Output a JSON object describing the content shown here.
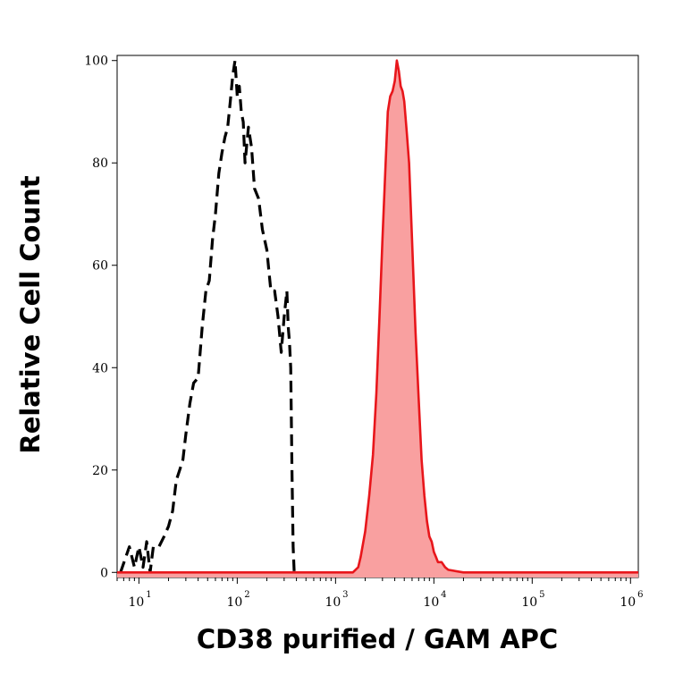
{
  "chart_data": {
    "type": "line",
    "title": "",
    "xlabel": "CD38 purified / GAM APC",
    "ylabel": "Relative Cell Count",
    "x_scale": "log",
    "xlim": [
      6,
      1200000
    ],
    "ylim": [
      -1,
      101
    ],
    "x_ticks": [
      {
        "base": "10",
        "exp": "1",
        "value": 10
      },
      {
        "base": "10",
        "exp": "2",
        "value": 100
      },
      {
        "base": "10",
        "exp": "3",
        "value": 1000
      },
      {
        "base": "10",
        "exp": "4",
        "value": 10000
      },
      {
        "base": "10",
        "exp": "5",
        "value": 100000
      },
      {
        "base": "10",
        "exp": "6",
        "value": 1000000
      }
    ],
    "y_ticks": [
      {
        "label": "0",
        "value": 0
      },
      {
        "label": "20",
        "value": 20
      },
      {
        "label": "40",
        "value": 40
      },
      {
        "label": "60",
        "value": 60
      },
      {
        "label": "80",
        "value": 80
      },
      {
        "label": "100",
        "value": 100
      }
    ],
    "grid": false,
    "legend": "none",
    "series": [
      {
        "style": "dashed",
        "color": "#000000",
        "fill": "none",
        "x": [
          6.5,
          8,
          9,
          10,
          11,
          12,
          13,
          14,
          16,
          18,
          20,
          22,
          24,
          26,
          28,
          30,
          33,
          36,
          40,
          44,
          48,
          52,
          56,
          60,
          65,
          70,
          75,
          80,
          85,
          90,
          95,
          100,
          105,
          110,
          115,
          120,
          130,
          140,
          150,
          165,
          180,
          200,
          220,
          240,
          260,
          280,
          300,
          320,
          330,
          340,
          350,
          360,
          370,
          380
        ],
        "y": [
          0,
          5,
          1,
          5,
          1,
          6,
          0,
          5,
          5,
          7,
          9,
          12,
          18,
          20,
          22,
          27,
          33,
          37,
          38,
          48,
          55,
          57,
          65,
          70,
          78,
          82,
          85,
          87,
          92,
          97,
          100,
          93,
          95,
          90,
          88,
          80,
          87,
          83,
          75,
          73,
          67,
          63,
          55,
          55,
          50,
          43,
          50,
          55,
          48,
          45,
          40,
          20,
          5,
          0
        ]
      },
      {
        "style": "solid",
        "color": "#e8161b",
        "fill": "#f9a0a0",
        "x": [
          6,
          1500,
          1700,
          1800,
          2000,
          2200,
          2400,
          2600,
          2800,
          3000,
          3200,
          3400,
          3600,
          3800,
          4000,
          4200,
          4400,
          4600,
          4800,
          5000,
          5300,
          5600,
          6000,
          6500,
          7000,
          7500,
          8000,
          8500,
          9000,
          9500,
          10000,
          10500,
          11000,
          12000,
          13000,
          14000,
          20000,
          1200000
        ],
        "y": [
          0,
          0,
          1,
          3,
          8,
          15,
          23,
          35,
          50,
          65,
          78,
          90,
          93,
          94,
          96,
          100,
          98,
          95,
          94,
          92,
          86,
          80,
          65,
          47,
          34,
          22,
          15,
          10,
          7,
          6,
          4,
          3,
          2,
          2,
          1,
          0.5,
          0,
          0
        ]
      }
    ]
  }
}
